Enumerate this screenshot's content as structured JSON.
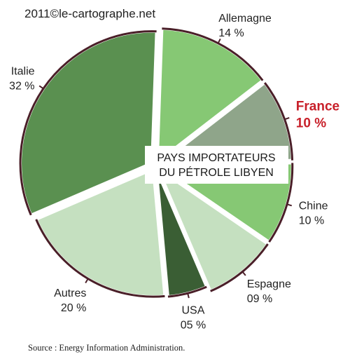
{
  "copyright": "2011©le-cartographe.net",
  "source": "Source : Energy Information Administration.",
  "center_label": {
    "line1": "PAYS IMPORTATEURS",
    "line2": "DU PÉTROLE LIBYEN"
  },
  "colors": {
    "outline": "#4a1f28",
    "highlight_text": "#c8202a",
    "label_text": "#222222"
  },
  "chart_data": {
    "type": "pie",
    "title": "PAYS IMPORTATEURS DU PÉTROLE LIBYEN",
    "slices": [
      {
        "name": "Allemagne",
        "label": "14 %",
        "value": 14,
        "color": "#86c874",
        "highlight": false
      },
      {
        "name": "France",
        "label": "10 %",
        "value": 10,
        "color": "#8fa58a",
        "highlight": true
      },
      {
        "name": "Chine",
        "label": "10 %",
        "value": 10,
        "color": "#86c874",
        "highlight": false
      },
      {
        "name": "Espagne",
        "label": "09 %",
        "value": 9,
        "color": "#c5e0c0",
        "highlight": false
      },
      {
        "name": "USA",
        "label": "05 %",
        "value": 5,
        "color": "#3a5e34",
        "highlight": false
      },
      {
        "name": "Autres",
        "label": "20 %",
        "value": 20,
        "color": "#c5e0c0",
        "highlight": false
      },
      {
        "name": "Italie",
        "label": "32 %",
        "value": 32,
        "color": "#5a9050",
        "highlight": false
      }
    ]
  }
}
